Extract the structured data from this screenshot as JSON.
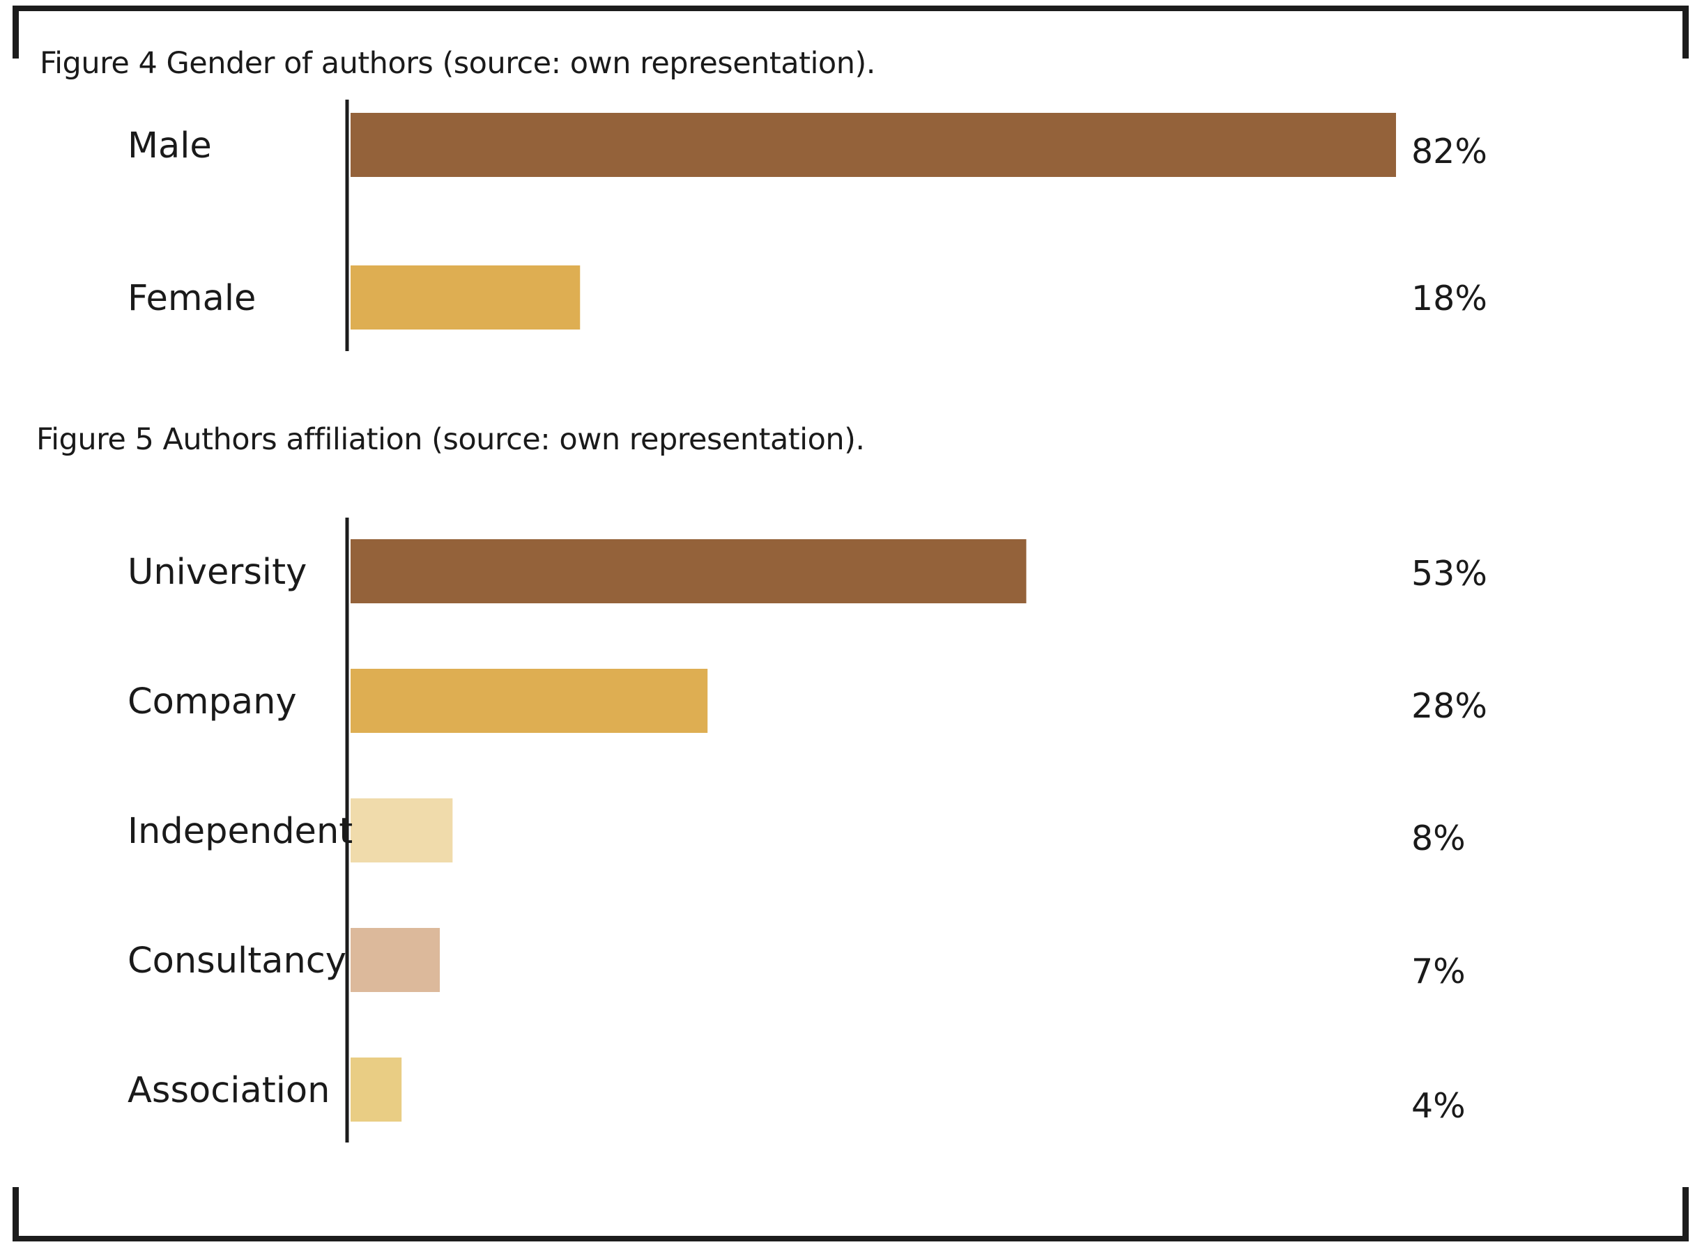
{
  "chart_data": [
    {
      "type": "bar",
      "orientation": "horizontal",
      "title": "Figure 4 Gender of authors  (source: own representation).",
      "categories": [
        "Male",
        "Female"
      ],
      "values": [
        82,
        18
      ],
      "value_labels": [
        "82%",
        "18%"
      ],
      "colors": [
        "#94623a",
        "#deae52"
      ],
      "xlim": [
        0,
        82
      ],
      "grid": false,
      "legend": "none"
    },
    {
      "type": "bar",
      "orientation": "horizontal",
      "title": "Figure 5 Authors affiliation (source: own representation).",
      "categories": [
        "University",
        "Company",
        "Independent",
        "Consultancy",
        "Association"
      ],
      "values": [
        53,
        28,
        8,
        7,
        4
      ],
      "value_labels": [
        "53%",
        "28%",
        "8%",
        "7%",
        "4%"
      ],
      "colors": [
        "#94623a",
        "#deae52",
        "#f0dbab",
        "#dcb99b",
        "#e9cd84"
      ],
      "xlim": [
        0,
        82
      ],
      "grid": false,
      "legend": "none"
    }
  ]
}
